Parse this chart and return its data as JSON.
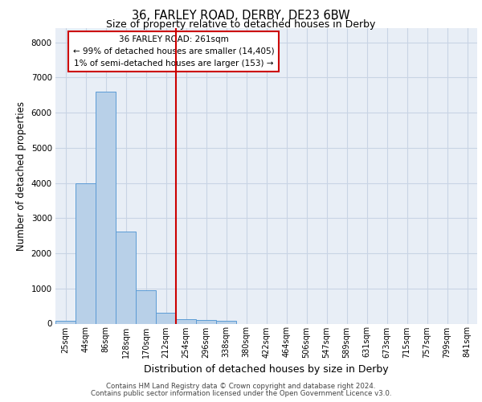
{
  "title_line1": "36, FARLEY ROAD, DERBY, DE23 6BW",
  "title_line2": "Size of property relative to detached houses in Derby",
  "xlabel": "Distribution of detached houses by size in Derby",
  "ylabel": "Number of detached properties",
  "bin_labels": [
    "25sqm",
    "44sqm",
    "86sqm",
    "128sqm",
    "170sqm",
    "212sqm",
    "254sqm",
    "296sqm",
    "338sqm",
    "380sqm",
    "422sqm",
    "464sqm",
    "506sqm",
    "547sqm",
    "589sqm",
    "631sqm",
    "673sqm",
    "715sqm",
    "757sqm",
    "799sqm",
    "841sqm"
  ],
  "bar_values": [
    70,
    3980,
    6600,
    2620,
    950,
    310,
    130,
    110,
    85,
    0,
    0,
    0,
    0,
    0,
    0,
    0,
    0,
    0,
    0,
    0,
    0
  ],
  "bar_color": "#b8d0e8",
  "bar_edge_color": "#5b9bd5",
  "grid_color": "#c8d4e4",
  "background_color": "#e8eef6",
  "vline_color": "#cc0000",
  "vline_index": 6,
  "annotation_text": "36 FARLEY ROAD: 261sqm\n← 99% of detached houses are smaller (14,405)\n1% of semi-detached houses are larger (153) →",
  "annotation_box_color": "#cc0000",
  "ylim": [
    0,
    8400
  ],
  "yticks": [
    0,
    1000,
    2000,
    3000,
    4000,
    5000,
    6000,
    7000,
    8000
  ],
  "footer_line1": "Contains HM Land Registry data © Crown copyright and database right 2024.",
  "footer_line2": "Contains public sector information licensed under the Open Government Licence v3.0."
}
